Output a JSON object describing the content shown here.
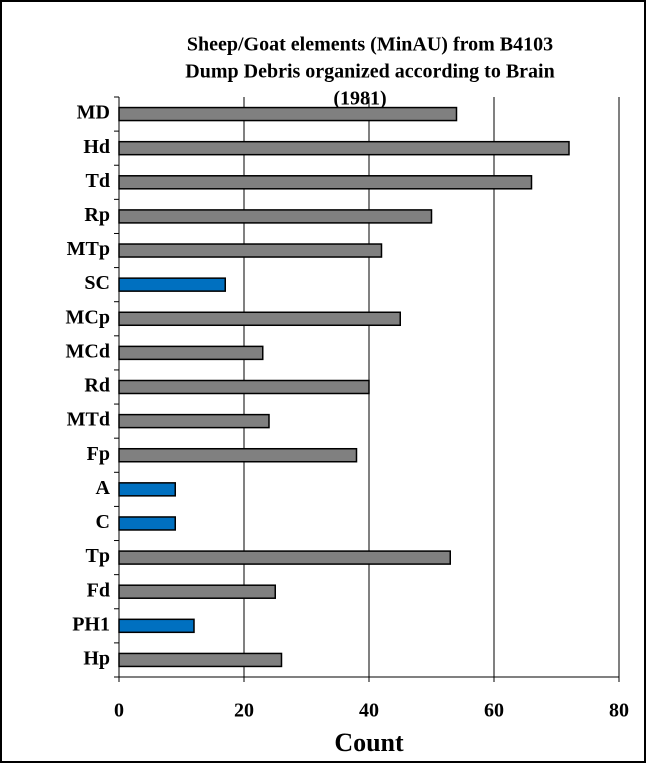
{
  "chart_data": {
    "type": "barh",
    "title": [
      "Sheep/Goat elements (MinAU) from B4103",
      "Dump Debris organized according to Brain",
      "(1981)"
    ],
    "xlabel": "Count",
    "categories": [
      "MD",
      "Hd",
      "Td",
      "Rp",
      "MTp",
      "SC",
      "MCp",
      "MCd",
      "Rd",
      "MTd",
      "Fp",
      "A",
      "C",
      "Tp",
      "Fd",
      "PH1",
      "Hp"
    ],
    "values": [
      54,
      72,
      66,
      50,
      42,
      17,
      45,
      23,
      40,
      24,
      38,
      9,
      9,
      53,
      25,
      12,
      26
    ],
    "colors": [
      "#808080",
      "#808080",
      "#808080",
      "#808080",
      "#808080",
      "#0070c0",
      "#808080",
      "#808080",
      "#808080",
      "#808080",
      "#808080",
      "#0070c0",
      "#0070c0",
      "#808080",
      "#808080",
      "#0070c0",
      "#808080"
    ],
    "xlim": [
      0,
      80
    ],
    "xticks": [
      0,
      20,
      40,
      60,
      80
    ],
    "grid": true
  }
}
